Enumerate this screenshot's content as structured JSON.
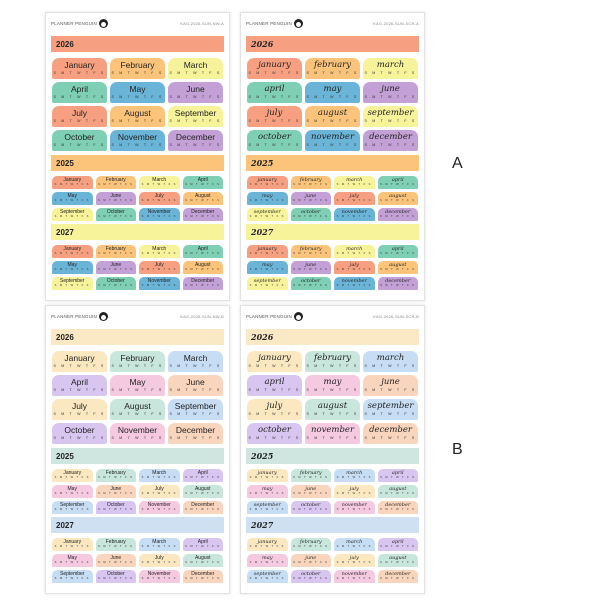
{
  "months": [
    "January",
    "February",
    "March",
    "April",
    "May",
    "June",
    "July",
    "August",
    "September",
    "October",
    "November",
    "December"
  ],
  "weekdays": "S M T W T F S",
  "sheets": [
    {
      "group": "A",
      "brand": "PLANNER PENGUIN",
      "code": "KAG-2026-SUN-NW-A",
      "script": false,
      "palette": [
        "#f6a081",
        "#fbc47a",
        "#f7f39a",
        "#7ecfb4",
        "#6ab4d8",
        "#c3a0d6"
      ],
      "years": [
        {
          "year": "2026",
          "color": "#f6a081"
        },
        {
          "year": "2025",
          "color": "#fbc47a"
        },
        {
          "year": "2027",
          "color": "#f7f39a"
        }
      ]
    },
    {
      "group": "A",
      "brand": "PLANNER PENGUIN",
      "code": "KAG-2026-SUN-SCR-A",
      "script": true,
      "palette": [
        "#f6a081",
        "#fbc47a",
        "#f7f39a",
        "#7ecfb4",
        "#6ab4d8",
        "#c3a0d6"
      ],
      "years": [
        {
          "year": "2026",
          "color": "#f6a081"
        },
        {
          "year": "2025",
          "color": "#fbc47a"
        },
        {
          "year": "2027",
          "color": "#f7f39a"
        }
      ]
    },
    {
      "group": "B",
      "brand": "PLANNER PENGUIN",
      "code": "KAG-2026-SUN-NW-B",
      "script": false,
      "palette": [
        "#fbe8c0",
        "#c8e6dc",
        "#c6ddf4",
        "#d8c6f0",
        "#f5c9e0",
        "#f9d5bd"
      ],
      "years": [
        {
          "year": "2026",
          "color": "#fbe9c6"
        },
        {
          "year": "2025",
          "color": "#cfe5df"
        },
        {
          "year": "2027",
          "color": "#cfe0f3"
        }
      ]
    },
    {
      "group": "B",
      "brand": "PLANNER PENGUIN",
      "code": "KAG-2026-SUN-SCR-B",
      "script": true,
      "palette": [
        "#fbe8c0",
        "#c8e6dc",
        "#c6ddf4",
        "#d8c6f0",
        "#f5c9e0",
        "#f9d5bd"
      ],
      "years": [
        {
          "year": "2026",
          "color": "#fbe9c6"
        },
        {
          "year": "2025",
          "color": "#cfe5df"
        },
        {
          "year": "2027",
          "color": "#cfe0f3"
        }
      ]
    }
  ],
  "labels": {
    "a": "A",
    "b": "B"
  }
}
